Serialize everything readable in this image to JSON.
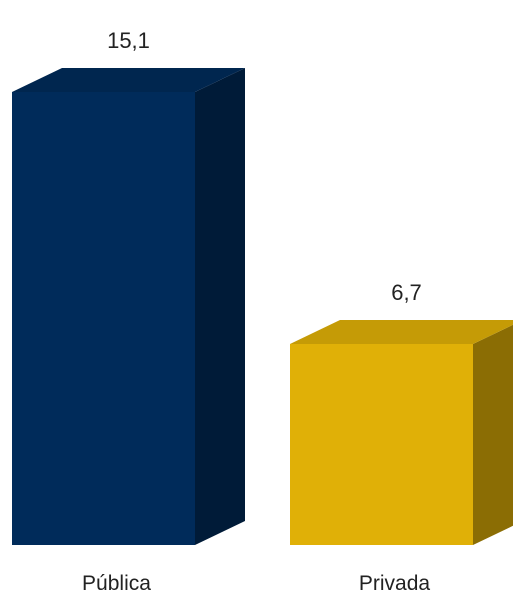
{
  "chart_data": {
    "type": "bar",
    "style": "3d-column",
    "categories": [
      "Pública",
      "Privada"
    ],
    "values": [
      15.1,
      6.7
    ],
    "value_labels": [
      "15,1",
      "6,7"
    ],
    "series": [
      {
        "values": [
          15.1,
          6.7
        ],
        "colors": [
          "#002b5a",
          "#e0b007"
        ]
      }
    ],
    "title": "",
    "xlabel": "",
    "ylabel": "",
    "grid": false,
    "legend": "none"
  }
}
